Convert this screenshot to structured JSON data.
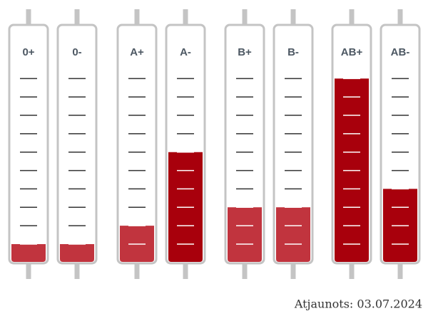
{
  "chart_data": {
    "type": "tube-gauge",
    "categories": [
      "0+",
      "0-",
      "A+",
      "A-",
      "B+",
      "B-",
      "AB+",
      "AB-"
    ],
    "values": [
      1,
      1,
      2,
      6,
      3,
      3,
      10,
      4
    ],
    "colors": [
      "#c1343e",
      "#c1343e",
      "#c1343e",
      "#a8000c",
      "#c1343e",
      "#c1343e",
      "#a8000c",
      "#a8000c"
    ],
    "ylim": [
      0,
      12.8
    ],
    "yticks": [
      1,
      2,
      3,
      4,
      5,
      6,
      7,
      8,
      9,
      10
    ],
    "footer": "Atjaunots: 03.07.2024"
  }
}
